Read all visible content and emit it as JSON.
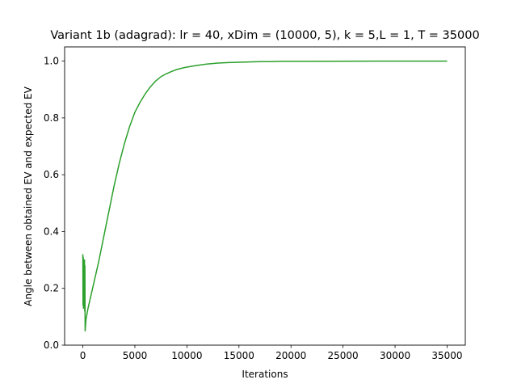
{
  "chart_data": {
    "type": "line",
    "title": "Variant 1b (adagrad): lr = 40, xDim = (10000, 5), k = 5,L = 1, T = 35000",
    "xlabel": "Iterations",
    "ylabel": "Angle between obtained EV and expected EV",
    "xlim": [
      -1750,
      36750
    ],
    "ylim": [
      0.0,
      1.05
    ],
    "xticks": [
      0,
      5000,
      10000,
      15000,
      20000,
      25000,
      30000,
      35000
    ],
    "yticks": [
      0.0,
      0.2,
      0.4,
      0.6,
      0.8,
      1.0
    ],
    "grid": false,
    "legend": null,
    "series": [
      {
        "color": "#2ca02c",
        "x": [
          0,
          20,
          40,
          60,
          80,
          100,
          120,
          140,
          160,
          180,
          200,
          220,
          260,
          300,
          500,
          1000,
          1500,
          2000,
          2500,
          3000,
          3500,
          4000,
          4500,
          5000,
          5500,
          6000,
          6500,
          7000,
          7500,
          8000,
          8500,
          9000,
          9500,
          10000,
          11000,
          12000,
          13000,
          14000,
          15000,
          16000,
          17000,
          18000,
          19000,
          20000,
          22000,
          25000,
          28000,
          30000,
          32000,
          35000
        ],
        "y": [
          0.32,
          0.14,
          0.31,
          0.13,
          0.3,
          0.15,
          0.29,
          0.19,
          0.3,
          0.12,
          0.28,
          0.05,
          0.07,
          0.09,
          0.13,
          0.21,
          0.29,
          0.38,
          0.47,
          0.56,
          0.64,
          0.71,
          0.77,
          0.82,
          0.855,
          0.885,
          0.91,
          0.93,
          0.945,
          0.955,
          0.963,
          0.97,
          0.975,
          0.979,
          0.985,
          0.99,
          0.993,
          0.995,
          0.996,
          0.997,
          0.998,
          0.998,
          0.999,
          0.999,
          0.999,
          0.9995,
          1.0,
          1.0,
          1.0,
          1.0
        ]
      }
    ]
  }
}
